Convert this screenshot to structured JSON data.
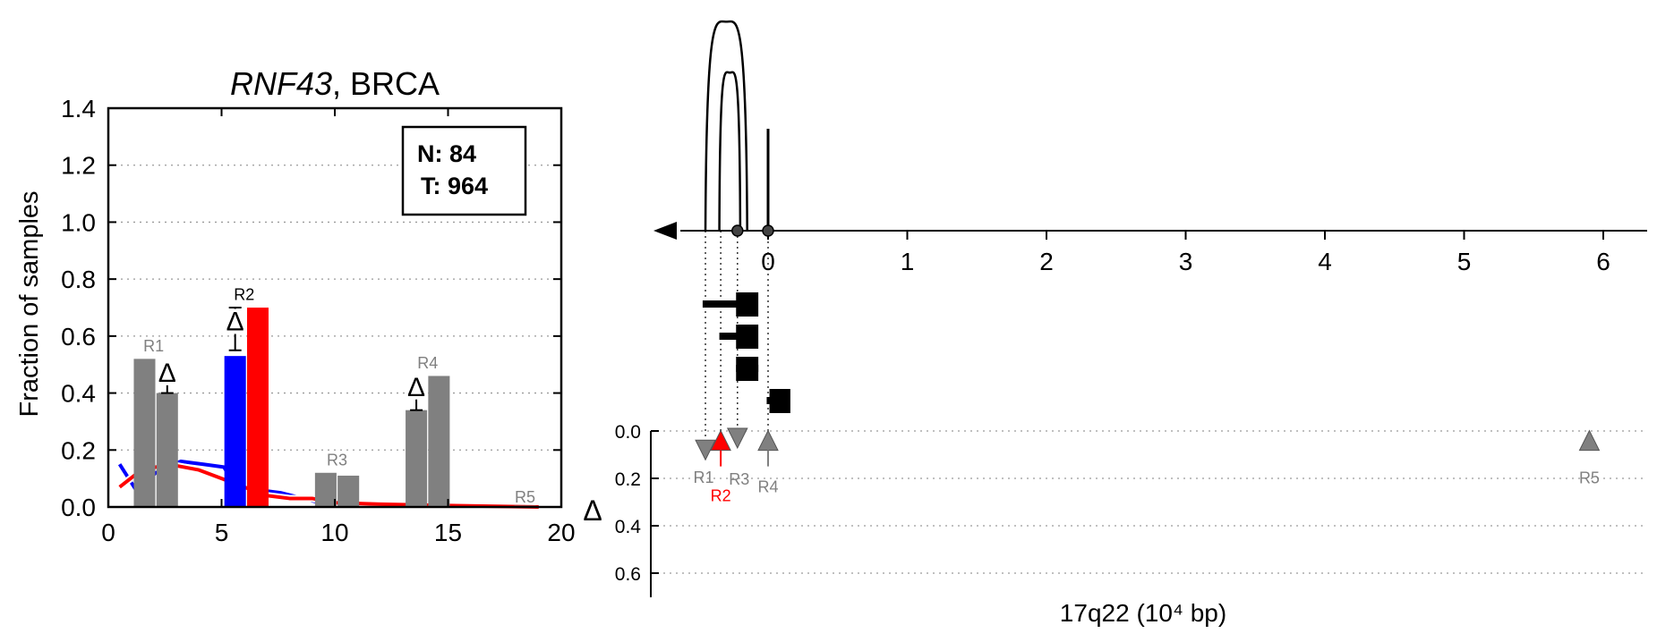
{
  "chart_data": [
    {
      "type": "bar",
      "title": {
        "gene": "RNF43",
        "suffix": ", BRCA"
      },
      "ylabel": "Fraction of samples",
      "xlim": [
        0,
        20
      ],
      "ylim": [
        0,
        1.4
      ],
      "xticks": [
        "0",
        "5",
        "10",
        "15",
        "20"
      ],
      "yticks": [
        "0.0",
        "0.2",
        "0.4",
        "0.6",
        "0.8",
        "1.0",
        "1.2",
        "1.4"
      ],
      "grid": "horizontal dotted",
      "legend": {
        "line1": "N: 84",
        "line2": "T: 964",
        "position": "top-right"
      },
      "delta_symbol": "Δ",
      "bars": [
        {
          "x": 1.6,
          "value": 0.52,
          "color": "#808080"
        },
        {
          "x": 2.6,
          "value": 0.4,
          "color": "#808080"
        },
        {
          "x": 5.6,
          "value": 0.53,
          "color": "#0000ff"
        },
        {
          "x": 6.6,
          "value": 0.7,
          "color": "#ff0000"
        },
        {
          "x": 9.6,
          "value": 0.12,
          "color": "#808080"
        },
        {
          "x": 10.6,
          "value": 0.11,
          "color": "#808080"
        },
        {
          "x": 13.6,
          "value": 0.34,
          "color": "#808080"
        },
        {
          "x": 14.6,
          "value": 0.46,
          "color": "#808080"
        },
        {
          "x": 18.4,
          "value": 0.005,
          "color": "#808080"
        }
      ],
      "region_labels": [
        {
          "text": "R1",
          "x": 2.0,
          "y": 0.54,
          "color": "#808080"
        },
        {
          "text": "R2",
          "x": 6.0,
          "y": 0.72,
          "color": "#000000"
        },
        {
          "text": "R3",
          "x": 10.1,
          "y": 0.14,
          "color": "#808080"
        },
        {
          "text": "R4",
          "x": 14.1,
          "y": 0.48,
          "color": "#808080"
        },
        {
          "text": "R5",
          "x": 18.4,
          "y": 0.01,
          "color": "#808080"
        }
      ],
      "delta_markers": [
        {
          "x": 2.6,
          "low": 0.4,
          "high": 0.51,
          "symbol_y": 0.44
        },
        {
          "x": 5.6,
          "low": 0.55,
          "high": 0.7,
          "symbol_y": 0.62
        },
        {
          "x": 13.6,
          "low": 0.34,
          "high": 0.46,
          "symbol_y": 0.39
        }
      ],
      "series": [
        {
          "color": "#0000ff",
          "x": [
            0.5,
            1.3,
            2.2,
            3.2,
            4.2,
            5.1,
            5.6,
            6.6,
            7.6,
            8.6,
            9.6,
            12,
            15,
            19
          ],
          "y": [
            0.15,
            0.05,
            0.13,
            0.16,
            0.15,
            0.14,
            0.08,
            0.06,
            0.05,
            0.03,
            0.01,
            0.01,
            0.005,
            0
          ]
        },
        {
          "color": "#ff0000",
          "x": [
            0.5,
            1.3,
            2.1,
            3.0,
            4.0,
            5.0,
            6.0,
            7.0,
            8.0,
            9.0,
            10.0,
            12,
            15,
            19
          ],
          "y": [
            0.07,
            0.12,
            0.14,
            0.145,
            0.13,
            0.1,
            0.07,
            0.04,
            0.03,
            0.03,
            0.015,
            0.01,
            0.005,
            0
          ]
        }
      ]
    },
    {
      "type": "scatter",
      "xlabel": "17q22 (10⁴ bp)",
      "xticks": [
        "0",
        "1",
        "2",
        "3",
        "4",
        "5",
        "6"
      ],
      "xlim": [
        -0.85,
        6.25
      ],
      "delta_axis": {
        "label": "Δ",
        "ticks": [
          "0.0",
          "0.2",
          "0.4",
          "0.6"
        ],
        "ylim": [
          0,
          0.7
        ]
      },
      "arcs": [
        {
          "from": -0.45,
          "to": -0.15,
          "peak": 0.82
        },
        {
          "from": -0.35,
          "to": -0.2,
          "peak": 0.62
        },
        {
          "from": -0.02,
          "to": 0.02,
          "peak": 0.4,
          "spike": true
        }
      ],
      "breakpoints": [
        -0.22,
        0.0
      ],
      "exon_rows": [
        {
          "thin_from": -0.47,
          "thin_to": -0.18,
          "box_from": -0.23,
          "box_to": -0.07
        },
        {
          "thin_from": -0.35,
          "thin_to": -0.18,
          "box_from": -0.23,
          "box_to": -0.07
        },
        {
          "thin_from": -0.23,
          "thin_to": -0.07,
          "box_from": -0.23,
          "box_to": -0.07
        },
        {
          "thin_from": -0.01,
          "thin_to": 0.03,
          "box_from": 0.01,
          "box_to": 0.16
        }
      ],
      "markers": [
        {
          "label": "R1",
          "x": -0.45,
          "delta": 0.08,
          "direction": "down",
          "color": "#808080"
        },
        {
          "label": "R2",
          "x": -0.34,
          "delta": 0.04,
          "direction": "up",
          "color": "#ff0000"
        },
        {
          "label": "R3",
          "x": -0.22,
          "delta": 0.03,
          "direction": "down",
          "color": "#808080"
        },
        {
          "label": "R4",
          "x": 0.0,
          "delta": 0.04,
          "direction": "up",
          "color": "#808080"
        },
        {
          "label": "R5",
          "x": 5.9,
          "delta": 0.04,
          "direction": "up",
          "color": "#808080"
        }
      ]
    }
  ]
}
